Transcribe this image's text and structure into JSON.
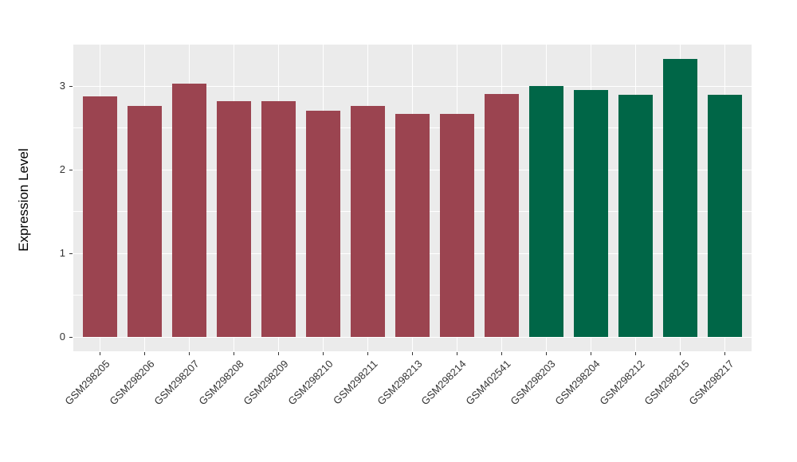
{
  "figure": {
    "background": "#FFFFFF",
    "panel_background": "#EBEBEB",
    "gridline_color": "#FFFFFF",
    "tick_text_color": "#333333",
    "axis_title_color": "#000000"
  },
  "chart_data": {
    "type": "bar",
    "title": "",
    "xlabel": "",
    "ylabel": "Expression Level",
    "categories": [
      "GSM298205",
      "GSM298206",
      "GSM298207",
      "GSM298208",
      "GSM298209",
      "GSM298210",
      "GSM298211",
      "GSM298213",
      "GSM298214",
      "GSM402541",
      "GSM298203",
      "GSM298204",
      "GSM298212",
      "GSM298215",
      "GSM298217"
    ],
    "values": [
      2.88,
      2.77,
      3.03,
      2.82,
      2.82,
      2.71,
      2.77,
      2.67,
      2.67,
      2.91,
      3.0,
      2.96,
      2.9,
      3.33,
      2.9
    ],
    "groups": [
      "red",
      "red",
      "red",
      "red",
      "red",
      "red",
      "red",
      "red",
      "red",
      "red",
      "green",
      "green",
      "green",
      "green",
      "green"
    ],
    "group_colors": {
      "red": "#9B4450",
      "green": "#006647"
    },
    "ylim": [
      0,
      3.5
    ],
    "yticks": [
      0,
      1,
      2,
      3
    ],
    "yticks_minor": [
      0.5,
      1.5,
      2.5
    ],
    "grid": "on",
    "legend_position": "none",
    "x_label_rotation_deg": 45
  }
}
